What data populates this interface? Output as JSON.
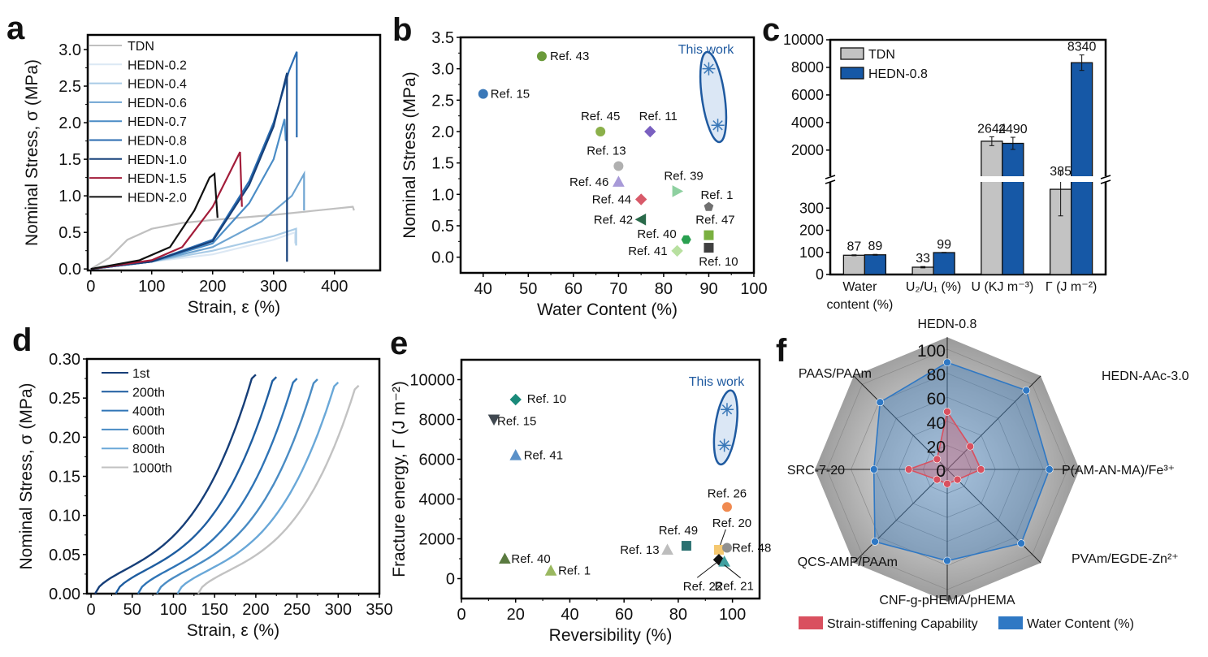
{
  "chart_data": [
    {
      "panel": "a",
      "type": "line",
      "xlabel": "Strain, ε (%)",
      "ylabel": "Nominal Stress, σ (MPa)",
      "xlim": [
        -5,
        475
      ],
      "ylim": [
        -0.02,
        3.2
      ],
      "xticks": [
        0,
        100,
        200,
        300,
        400
      ],
      "yticks": [
        0.0,
        0.5,
        1.0,
        1.5,
        2.0,
        2.5,
        3.0
      ],
      "legend_position": "top-left",
      "series": [
        {
          "name": "TDN",
          "color": "#c0c0c0",
          "points": [
            [
              0,
              0
            ],
            [
              30,
              0.15
            ],
            [
              60,
              0.4
            ],
            [
              100,
              0.55
            ],
            [
              150,
              0.63
            ],
            [
              200,
              0.67
            ],
            [
              300,
              0.74
            ],
            [
              430,
              0.85
            ],
            [
              432,
              0.8
            ]
          ]
        },
        {
          "name": "HEDN-0.2",
          "color": "#dce8f4",
          "points": [
            [
              0,
              0
            ],
            [
              100,
              0.1
            ],
            [
              200,
              0.2
            ],
            [
              300,
              0.4
            ],
            [
              335,
              0.5
            ],
            [
              335,
              0.35
            ]
          ]
        },
        {
          "name": "HEDN-0.4",
          "color": "#a9cbe6",
          "points": [
            [
              0,
              0
            ],
            [
              100,
              0.1
            ],
            [
              200,
              0.25
            ],
            [
              300,
              0.45
            ],
            [
              337,
              0.55
            ],
            [
              337,
              0.32
            ]
          ]
        },
        {
          "name": "HEDN-0.6",
          "color": "#6fa5d2",
          "points": [
            [
              0,
              0
            ],
            [
              100,
              0.1
            ],
            [
              200,
              0.3
            ],
            [
              280,
              0.65
            ],
            [
              330,
              1.0
            ],
            [
              350,
              1.3
            ],
            [
              350,
              0.8
            ]
          ]
        },
        {
          "name": "HEDN-0.7",
          "color": "#4a8cc6",
          "points": [
            [
              0,
              0
            ],
            [
              100,
              0.1
            ],
            [
              200,
              0.35
            ],
            [
              260,
              0.9
            ],
            [
              300,
              1.5
            ],
            [
              318,
              2.05
            ],
            [
              320,
              1.75
            ]
          ]
        },
        {
          "name": "HEDN-0.8",
          "color": "#2a6bb0",
          "points": [
            [
              0,
              0
            ],
            [
              100,
              0.1
            ],
            [
              200,
              0.4
            ],
            [
              260,
              1.2
            ],
            [
              300,
              2.0
            ],
            [
              325,
              2.7
            ],
            [
              338,
              2.97
            ],
            [
              338,
              1.8
            ]
          ]
        },
        {
          "name": "HEDN-1.0",
          "color": "#16407a",
          "points": [
            [
              0,
              0
            ],
            [
              100,
              0.1
            ],
            [
              200,
              0.38
            ],
            [
              260,
              1.15
            ],
            [
              300,
              1.95
            ],
            [
              322,
              2.68
            ],
            [
              322,
              0.1
            ]
          ]
        },
        {
          "name": "HEDN-1.5",
          "color": "#a31d3a",
          "points": [
            [
              0,
              0
            ],
            [
              100,
              0.12
            ],
            [
              150,
              0.3
            ],
            [
              200,
              0.85
            ],
            [
              230,
              1.35
            ],
            [
              245,
              1.6
            ],
            [
              248,
              0.85
            ]
          ]
        },
        {
          "name": "HEDN-2.0",
          "color": "#111111",
          "points": [
            [
              0,
              0
            ],
            [
              80,
              0.12
            ],
            [
              130,
              0.3
            ],
            [
              170,
              0.8
            ],
            [
              195,
              1.25
            ],
            [
              203,
              1.3
            ],
            [
              208,
              0.7
            ]
          ]
        }
      ]
    },
    {
      "panel": "b",
      "type": "scatter",
      "xlabel": "Water Content (%)",
      "ylabel": "Nominal Stress (MPa)",
      "xlim": [
        35,
        100
      ],
      "ylim": [
        -0.25,
        3.5
      ],
      "xticks": [
        40,
        50,
        60,
        70,
        80,
        90,
        100
      ],
      "yticks": [
        0.0,
        0.5,
        1.0,
        1.5,
        2.0,
        2.5,
        3.0,
        3.5
      ],
      "annotation": "This work",
      "this_work": [
        [
          90,
          3.0
        ],
        [
          92,
          2.1
        ]
      ],
      "points": [
        {
          "label": "Ref. 43",
          "x": 53,
          "y": 3.2,
          "color": "#6a9a3a",
          "marker": "circle"
        },
        {
          "label": "Ref. 15",
          "x": 40,
          "y": 2.6,
          "color": "#3a78b8",
          "marker": "circle"
        },
        {
          "label": "Ref. 45",
          "x": 66,
          "y": 2.0,
          "color": "#8bb04a",
          "marker": "circle"
        },
        {
          "label": "Ref. 11",
          "x": 77,
          "y": 2.0,
          "color": "#7a60c0",
          "marker": "diamond"
        },
        {
          "label": "Ref. 13",
          "x": 70,
          "y": 1.45,
          "color": "#b0b0b0",
          "marker": "circle"
        },
        {
          "label": "Ref. 46",
          "x": 70,
          "y": 1.2,
          "color": "#a89ad8",
          "marker": "triangle"
        },
        {
          "label": "Ref. 39",
          "x": 83,
          "y": 1.05,
          "color": "#8ed0a0",
          "marker": "triangle-right"
        },
        {
          "label": "Ref. 44",
          "x": 75,
          "y": 0.92,
          "color": "#d85a6a",
          "marker": "diamond"
        },
        {
          "label": "Ref. 1",
          "x": 90,
          "y": 0.8,
          "color": "#707070",
          "marker": "pentagon"
        },
        {
          "label": "Ref. 42",
          "x": 75,
          "y": 0.6,
          "color": "#2a6a4a",
          "marker": "triangle-left"
        },
        {
          "label": "Ref. 47",
          "x": 90,
          "y": 0.35,
          "color": "#7ab040",
          "marker": "square"
        },
        {
          "label": "Ref. 40",
          "x": 85,
          "y": 0.28,
          "color": "#2aa050",
          "marker": "hexagon"
        },
        {
          "label": "Ref. 10",
          "x": 90,
          "y": 0.15,
          "color": "#404040",
          "marker": "square"
        },
        {
          "label": "Ref. 41",
          "x": 83,
          "y": 0.1,
          "color": "#b8e0a0",
          "marker": "diamond"
        }
      ]
    },
    {
      "panel": "c",
      "type": "bar",
      "categories": [
        "Water content (%)",
        "U2/U1 (%)",
        "U (KJ m-3)",
        "Γ (J m-2)"
      ],
      "category_display": [
        [
          "Water",
          "content (%)"
        ],
        [
          "U₂/U₁ (%)"
        ],
        [
          "U (KJ m⁻³)"
        ],
        [
          "Γ (J m⁻²)"
        ]
      ],
      "series": [
        {
          "name": "TDN",
          "color": "#c3c3c3",
          "values": [
            87,
            33,
            2644,
            385
          ],
          "errors": [
            2,
            3,
            320,
            120
          ]
        },
        {
          "name": "HEDN-0.8",
          "color": "#1658a6",
          "values": [
            89,
            99,
            2490,
            8340
          ],
          "errors": [
            2,
            1,
            440,
            560
          ]
        }
      ],
      "value_labels": {
        "TDN": [
          "87",
          "33",
          "2644",
          "385"
        ],
        "HEDN-0.8": [
          "89",
          "99",
          "2490",
          "8340"
        ]
      },
      "yaxis_broken": true,
      "ylim_lower": [
        0,
        400
      ],
      "ylim_upper": [
        400,
        10000
      ],
      "yticks_lower": [
        0,
        100,
        200,
        300
      ],
      "yticks_upper": [
        2000,
        4000,
        6000,
        8000,
        10000
      ],
      "legend_position": "top-left"
    },
    {
      "panel": "d",
      "type": "line",
      "xlabel": "Strain, ε (%)",
      "ylabel": "Nominal Stress, σ (MPa)",
      "xlim": [
        -5,
        350
      ],
      "ylim": [
        0,
        0.3
      ],
      "xticks": [
        0,
        50,
        100,
        150,
        200,
        250,
        300,
        350
      ],
      "yticks": [
        0.0,
        0.05,
        0.1,
        0.15,
        0.2,
        0.25,
        0.3
      ],
      "yticklabels": [
        "0.00",
        "0.05",
        "0.10",
        "0.15",
        "0.20",
        "0.25",
        "0.30"
      ],
      "legend_position": "top-left",
      "series": [
        {
          "name": "1st",
          "color": "#163e78",
          "start": 5,
          "end": 200,
          "peak": 0.28
        },
        {
          "name": "200th",
          "color": "#1e5da0",
          "start": 30,
          "end": 225,
          "peak": 0.277
        },
        {
          "name": "400th",
          "color": "#2f74b6",
          "start": 57,
          "end": 250,
          "peak": 0.275
        },
        {
          "name": "600th",
          "color": "#4a8cc4",
          "start": 80,
          "end": 275,
          "peak": 0.274
        },
        {
          "name": "800th",
          "color": "#6aa8d8",
          "start": 105,
          "end": 300,
          "peak": 0.27
        },
        {
          "name": "1000th",
          "color": "#c2c2c2",
          "start": 130,
          "end": 325,
          "peak": 0.266
        }
      ]
    },
    {
      "panel": "e",
      "type": "scatter",
      "xlabel": "Reversibility (%)",
      "ylabel": "Fracture energy, Γ (J m⁻²)",
      "xlim": [
        0,
        110
      ],
      "ylim": [
        -1000,
        11000
      ],
      "xticks": [
        0,
        20,
        40,
        60,
        80,
        100
      ],
      "yticks": [
        0,
        2000,
        4000,
        6000,
        8000,
        10000
      ],
      "annotation": "This work",
      "this_work": [
        [
          98,
          8500
        ],
        [
          97,
          6700
        ]
      ],
      "points": [
        {
          "label": "Ref. 10",
          "x": 20,
          "y": 9000,
          "color": "#1a8a7a",
          "marker": "diamond"
        },
        {
          "label": "Ref. 15",
          "x": 12,
          "y": 8000,
          "color": "#404850",
          "marker": "triangle-down"
        },
        {
          "label": "Ref. 41",
          "x": 20,
          "y": 6200,
          "color": "#5a90c8",
          "marker": "triangle"
        },
        {
          "label": "Ref. 26",
          "x": 98,
          "y": 3600,
          "color": "#f08a50",
          "marker": "circle"
        },
        {
          "label": "Ref. 20",
          "x": 95,
          "y": 1450,
          "color": "#f5c870",
          "marker": "square"
        },
        {
          "label": "Ref. 48",
          "x": 98,
          "y": 1550,
          "color": "#909090",
          "marker": "circle"
        },
        {
          "label": "Ref. 49",
          "x": 83,
          "y": 1650,
          "color": "#2a7070",
          "marker": "square"
        },
        {
          "label": "Ref. 13",
          "x": 76,
          "y": 1450,
          "color": "#bdbdbd",
          "marker": "triangle"
        },
        {
          "label": "Ref. 40",
          "x": 16,
          "y": 1000,
          "color": "#5a7a40",
          "marker": "triangle"
        },
        {
          "label": "Ref. 22",
          "x": 95,
          "y": 950,
          "color": "#111111",
          "marker": "diamond"
        },
        {
          "label": "Ref. 21",
          "x": 97,
          "y": 850,
          "color": "#40a0a0",
          "marker": "triangle"
        },
        {
          "label": "Ref. 1",
          "x": 33,
          "y": 400,
          "color": "#9ab860",
          "marker": "triangle"
        }
      ]
    },
    {
      "panel": "f",
      "type": "radar",
      "axes": [
        "HEDN-0.8",
        "HEDN-AAc-3.0",
        "P(AM-AN-MA)/Fe³⁺",
        "PVAm/EGDE-Zn²⁺",
        "CNF-g-pHEMA/pHEMA",
        "QCS-AMP/PAAm",
        "SRC-7-20",
        "PAAS/PAAm"
      ],
      "rticks": [
        0,
        20,
        40,
        60,
        80,
        100
      ],
      "rlim": [
        0,
        100
      ],
      "series": [
        {
          "name": "Strain-stiffening Capability",
          "color": "#d9505f",
          "values": [
            48,
            27,
            28,
            12,
            12,
            12,
            32,
            12
          ]
        },
        {
          "name": "Water Content (%)",
          "color": "#2f78c4",
          "values": [
            89,
            93,
            85,
            87,
            76,
            85,
            61,
            79
          ]
        }
      ],
      "legend_position": "bottom"
    }
  ],
  "panel_labels": [
    "a",
    "b",
    "c",
    "d",
    "e",
    "f"
  ]
}
